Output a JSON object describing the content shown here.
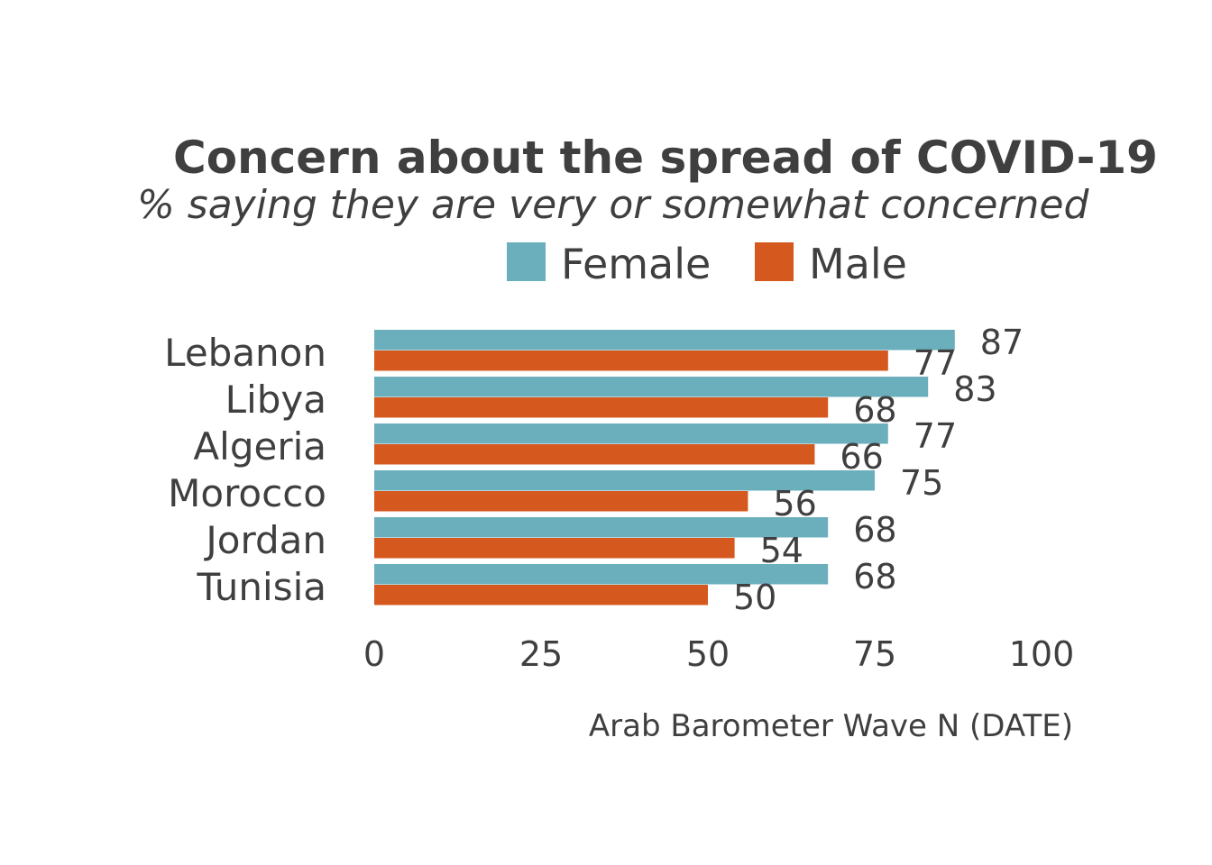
{
  "chart_data": {
    "type": "bar",
    "orientation": "horizontal",
    "title": "Concern about the spread of COVID-19",
    "subtitle": "% saying they are very or somewhat concerned",
    "caption": "Arab Barometer Wave N (DATE)",
    "categories": [
      "Lebanon",
      "Libya",
      "Algeria",
      "Morocco",
      "Jordan",
      "Tunisia"
    ],
    "series": [
      {
        "name": "Female",
        "color": "#6aafbb",
        "values": [
          87,
          83,
          77,
          75,
          68,
          68
        ]
      },
      {
        "name": "Male",
        "color": "#d5581e",
        "values": [
          77,
          68,
          66,
          56,
          54,
          50
        ]
      }
    ],
    "xlim": [
      0,
      100
    ],
    "xticks": [
      0,
      25,
      50,
      75,
      100
    ],
    "legend_position": "top",
    "grid": false
  }
}
